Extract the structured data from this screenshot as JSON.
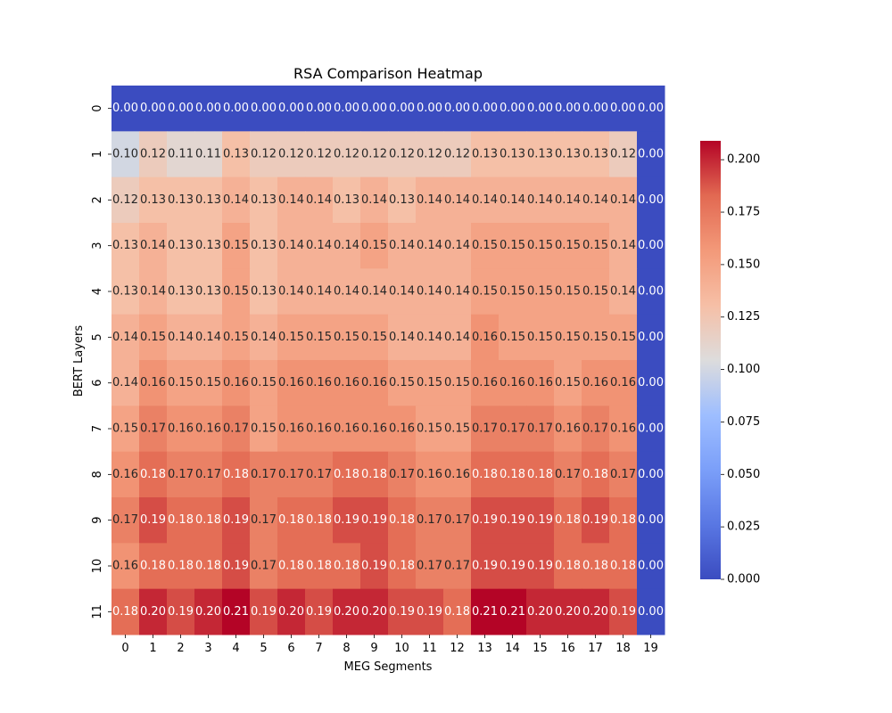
{
  "chart_data": {
    "type": "heatmap",
    "title": "RSA Comparison Heatmap",
    "xlabel": "MEG Segments",
    "ylabel": "BERT Layers",
    "x_categories": [
      "0",
      "1",
      "2",
      "3",
      "4",
      "5",
      "6",
      "7",
      "8",
      "9",
      "10",
      "11",
      "12",
      "13",
      "14",
      "15",
      "16",
      "17",
      "18",
      "19"
    ],
    "y_categories": [
      "0",
      "1",
      "2",
      "3",
      "4",
      "5",
      "6",
      "7",
      "8",
      "9",
      "10",
      "11"
    ],
    "values": [
      [
        0.0,
        0.0,
        0.0,
        0.0,
        0.0,
        0.0,
        0.0,
        0.0,
        0.0,
        0.0,
        0.0,
        0.0,
        0.0,
        0.0,
        0.0,
        0.0,
        0.0,
        0.0,
        0.0,
        0.0
      ],
      [
        0.1,
        0.12,
        0.11,
        0.11,
        0.13,
        0.12,
        0.12,
        0.12,
        0.12,
        0.12,
        0.12,
        0.12,
        0.12,
        0.13,
        0.13,
        0.13,
        0.13,
        0.13,
        0.12,
        0.0
      ],
      [
        0.12,
        0.13,
        0.13,
        0.13,
        0.14,
        0.13,
        0.14,
        0.14,
        0.13,
        0.14,
        0.13,
        0.14,
        0.14,
        0.14,
        0.14,
        0.14,
        0.14,
        0.14,
        0.14,
        0.0
      ],
      [
        0.13,
        0.14,
        0.13,
        0.13,
        0.15,
        0.13,
        0.14,
        0.14,
        0.14,
        0.15,
        0.14,
        0.14,
        0.14,
        0.15,
        0.15,
        0.15,
        0.15,
        0.15,
        0.14,
        0.0
      ],
      [
        0.13,
        0.14,
        0.13,
        0.13,
        0.15,
        0.13,
        0.14,
        0.14,
        0.14,
        0.14,
        0.14,
        0.14,
        0.14,
        0.15,
        0.15,
        0.15,
        0.15,
        0.15,
        0.14,
        0.0
      ],
      [
        0.14,
        0.15,
        0.14,
        0.14,
        0.15,
        0.14,
        0.15,
        0.15,
        0.15,
        0.15,
        0.14,
        0.14,
        0.14,
        0.16,
        0.15,
        0.15,
        0.15,
        0.15,
        0.15,
        0.0
      ],
      [
        0.14,
        0.16,
        0.15,
        0.15,
        0.16,
        0.15,
        0.16,
        0.16,
        0.16,
        0.16,
        0.15,
        0.15,
        0.15,
        0.16,
        0.16,
        0.16,
        0.15,
        0.16,
        0.16,
        0.0
      ],
      [
        0.15,
        0.17,
        0.16,
        0.16,
        0.17,
        0.15,
        0.16,
        0.16,
        0.16,
        0.16,
        0.16,
        0.15,
        0.15,
        0.17,
        0.17,
        0.17,
        0.16,
        0.17,
        0.16,
        0.0
      ],
      [
        0.16,
        0.18,
        0.17,
        0.17,
        0.18,
        0.17,
        0.17,
        0.17,
        0.18,
        0.18,
        0.17,
        0.16,
        0.16,
        0.18,
        0.18,
        0.18,
        0.17,
        0.18,
        0.17,
        0.0
      ],
      [
        0.17,
        0.19,
        0.18,
        0.18,
        0.19,
        0.17,
        0.18,
        0.18,
        0.19,
        0.19,
        0.18,
        0.17,
        0.17,
        0.19,
        0.19,
        0.19,
        0.18,
        0.19,
        0.18,
        0.0
      ],
      [
        0.16,
        0.18,
        0.18,
        0.18,
        0.19,
        0.17,
        0.18,
        0.18,
        0.18,
        0.19,
        0.18,
        0.17,
        0.17,
        0.19,
        0.19,
        0.19,
        0.18,
        0.18,
        0.18,
        0.0
      ],
      [
        0.18,
        0.2,
        0.19,
        0.2,
        0.21,
        0.19,
        0.2,
        0.19,
        0.2,
        0.2,
        0.19,
        0.19,
        0.18,
        0.21,
        0.21,
        0.2,
        0.2,
        0.2,
        0.19,
        0.0
      ]
    ],
    "colormap": "coolwarm",
    "vmin": 0.0,
    "vmax": 0.209,
    "colorbar_ticks": [
      "0.000",
      "0.025",
      "0.050",
      "0.075",
      "0.100",
      "0.125",
      "0.150",
      "0.175",
      "0.200"
    ],
    "annotations": true,
    "value_format": "0.00",
    "grid": false,
    "legend": "colorbar-right"
  }
}
